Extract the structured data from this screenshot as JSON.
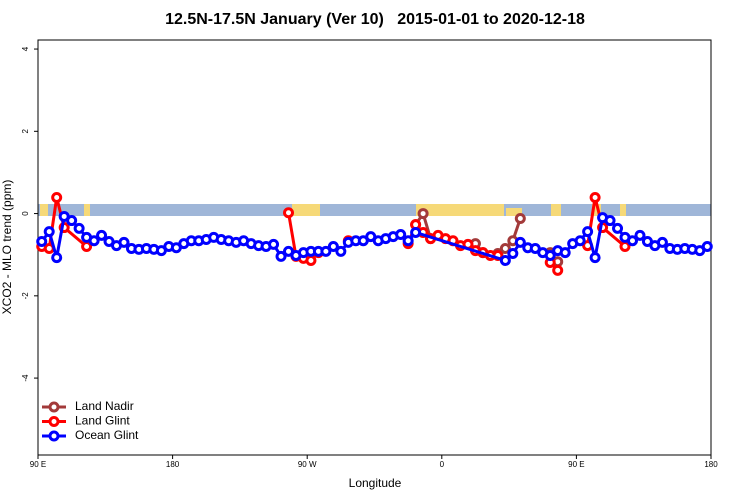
{
  "chart_data": {
    "type": "line",
    "title": "12.5N-17.5N January (Ver 10)   2015-01-01 to 2020-12-18",
    "xlabel": "Longitude",
    "ylabel": "XCO2 - MLO trend (ppm)",
    "xlim": [
      90,
      540
    ],
    "ylim": [
      -5.87,
      4.22
    ],
    "xticks": [
      {
        "value": 90,
        "label": "90 E"
      },
      180,
      {
        "value": 270,
        "label": "90 W"
      },
      {
        "value": 360,
        "label": "0"
      },
      {
        "value": 450,
        "label": "90 E"
      },
      180
    ],
    "yticks": [
      -4,
      -2,
      0,
      2,
      4
    ],
    "legend": "bottom-left",
    "series": [
      {
        "name": "Land Nadir",
        "color": "#a33a3a",
        "x": [
          342.5,
          347.5,
          352.5,
          null,
          382.5,
          387.5,
          397.5,
          402.5,
          407.5,
          412.5,
          null,
          432.5,
          437.5
        ],
        "values": [
          -0.27,
          0.0,
          -0.61,
          null,
          -0.73,
          -0.95,
          -0.97,
          -0.85,
          -0.66,
          -0.12,
          null,
          -0.95,
          -1.17
        ]
      },
      {
        "name": "Land Glint",
        "color": "#ff0000",
        "x": [
          92.5,
          97.5,
          102.5,
          107.5,
          122.5,
          null,
          257.5,
          262.5,
          267.5,
          272.5,
          277.5,
          null,
          297.5,
          null,
          337.5,
          342.5,
          347.5,
          352.5,
          357.5,
          362.5,
          367.5,
          372.5,
          377.5,
          382.5,
          387.5,
          392.5,
          397.5,
          null,
          432.5,
          437.5,
          null,
          457.5,
          462.5,
          467.5,
          482.5
        ],
        "values": [
          -0.8,
          -0.85,
          0.39,
          -0.34,
          -0.8,
          null,
          0.02,
          -1.04,
          -1.09,
          -1.14,
          -0.95,
          null,
          -0.66,
          null,
          -0.73,
          -0.27,
          -0.46,
          -0.61,
          -0.53,
          -0.61,
          -0.66,
          -0.78,
          -0.75,
          -0.9,
          -0.95,
          -1.02,
          -1.02,
          null,
          -1.19,
          -1.38,
          null,
          -0.78,
          0.39,
          -0.34,
          -0.8
        ]
      },
      {
        "name": "Ocean Glint",
        "color": "#0000ff",
        "x": [
          92.5,
          97.5,
          102.5,
          107.5,
          112.5,
          117.5,
          122.5,
          127.5,
          132.5,
          137.5,
          142.5,
          147.5,
          152.5,
          157.5,
          162.5,
          167.5,
          172.5,
          177.5,
          182.5,
          187.5,
          192.5,
          197.5,
          202.5,
          207.5,
          212.5,
          217.5,
          222.5,
          227.5,
          232.5,
          237.5,
          242.5,
          247.5,
          252.5,
          257.5,
          262.5,
          267.5,
          272.5,
          277.5,
          282.5,
          287.5,
          292.5,
          297.5,
          302.5,
          307.5,
          312.5,
          317.5,
          322.5,
          327.5,
          332.5,
          337.5,
          342.5,
          402.5,
          407.5,
          412.5,
          417.5,
          422.5,
          427.5,
          432.5,
          437.5,
          442.5,
          447.5,
          452.5,
          457.5,
          462.5,
          467.5,
          472.5,
          477.5,
          482.5,
          487.5,
          492.5,
          497.5,
          502.5,
          507.5,
          512.5,
          517.5,
          522.5,
          527.5,
          532.5,
          537.5
        ],
        "values": [
          -0.68,
          -0.44,
          -1.07,
          -0.07,
          -0.17,
          -0.36,
          -0.58,
          -0.66,
          -0.53,
          -0.68,
          -0.78,
          -0.7,
          -0.85,
          -0.87,
          -0.85,
          -0.87,
          -0.9,
          -0.8,
          -0.83,
          -0.73,
          -0.66,
          -0.66,
          -0.63,
          -0.58,
          -0.63,
          -0.66,
          -0.7,
          -0.66,
          -0.73,
          -0.78,
          -0.8,
          -0.75,
          -1.04,
          -0.92,
          -1.02,
          -0.95,
          -0.92,
          -0.92,
          -0.92,
          -0.8,
          -0.92,
          -0.7,
          -0.66,
          -0.66,
          -0.56,
          -0.66,
          -0.61,
          -0.56,
          -0.51,
          -0.66,
          -0.46,
          -1.14,
          -0.97,
          -0.7,
          -0.83,
          -0.85,
          -0.95,
          -1.02,
          -0.9,
          -0.95,
          -0.73,
          -0.66,
          -0.44,
          -1.07,
          -0.1,
          -0.17,
          -0.36,
          -0.58,
          -0.66,
          -0.53,
          -0.68,
          -0.78,
          -0.7,
          -0.85,
          -0.87,
          -0.85,
          -0.87,
          -0.9,
          -0.8
        ]
      }
    ]
  }
}
